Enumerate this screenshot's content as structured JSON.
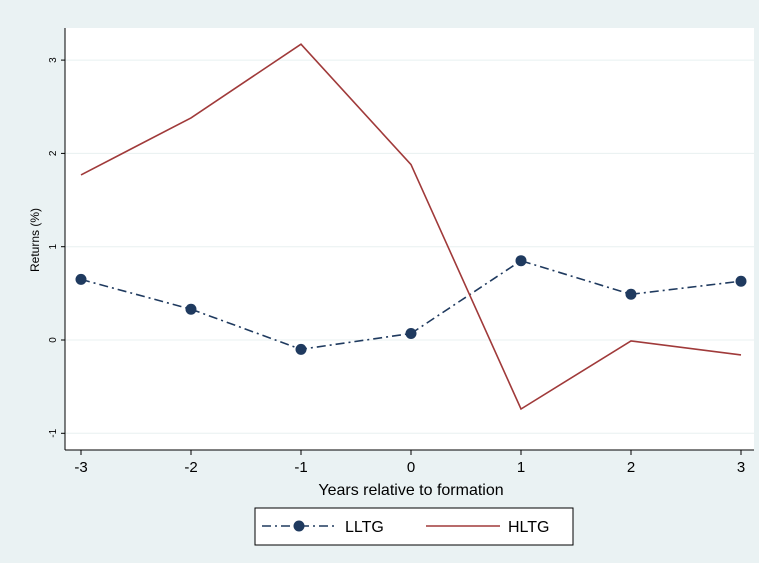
{
  "chart_data": {
    "type": "line",
    "title": "",
    "xlabel": "Years relative to formation",
    "ylabel": "Returns (%)",
    "x": [
      -3,
      -2,
      -1,
      0,
      1,
      2,
      3
    ],
    "x_ticks": [
      "-3",
      "-2",
      "-1",
      "0",
      "1",
      "2",
      "3"
    ],
    "y_ticks": [
      "-1",
      "0",
      "1",
      "2",
      "3"
    ],
    "xlim": [
      -3,
      3
    ],
    "ylim": [
      -1.05,
      3.3
    ],
    "grid": true,
    "legend_position": "bottom",
    "series": [
      {
        "name": "LLTG",
        "values": [
          0.65,
          0.33,
          -0.1,
          0.07,
          0.85,
          0.49,
          0.63
        ],
        "color": "#1f3a5f",
        "style": "dash-dot with circle markers"
      },
      {
        "name": "HLTG",
        "values": [
          1.77,
          2.38,
          3.17,
          1.88,
          -0.74,
          -0.01,
          -0.16
        ],
        "color": "#a03a3a",
        "style": "solid"
      }
    ]
  },
  "colors": {
    "outer_background": "#eaf2f3",
    "plot_background": "#ffffff",
    "gridline": "#e8f0f0"
  }
}
